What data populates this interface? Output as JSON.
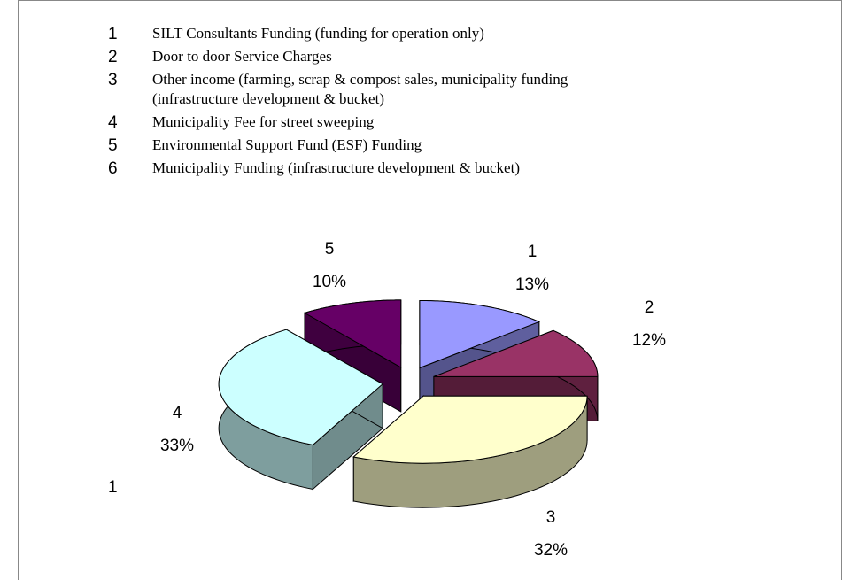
{
  "chart_data": {
    "type": "pie",
    "legend": [
      {
        "number": "1",
        "lines": [
          "SILT Consultants Funding (funding for operation only)"
        ]
      },
      {
        "number": "2",
        "lines": [
          "Door to door Service Charges"
        ]
      },
      {
        "number": "3",
        "lines": [
          "Other income (farming, scrap & compost sales, municipality funding",
          "(infrastructure development & bucket)"
        ]
      },
      {
        "number": "4",
        "lines": [
          "Municipality Fee for street sweeping"
        ]
      },
      {
        "number": "5",
        "lines": [
          "Environmental Support Fund (ESF) Funding"
        ]
      },
      {
        "number": "6",
        "lines": [
          "Municipality Funding (infrastructure development & bucket)"
        ]
      }
    ],
    "categories": [
      "1",
      "2",
      "3",
      "4",
      "5"
    ],
    "values": [
      13,
      12,
      32,
      33,
      10
    ],
    "value_labels": [
      "13%",
      "12%",
      "32%",
      "33%",
      "10%"
    ],
    "colors": [
      "#9999ff",
      "#993366",
      "#ffffcc",
      "#ccffff",
      "#660066"
    ],
    "annotations": [
      "1"
    ]
  }
}
